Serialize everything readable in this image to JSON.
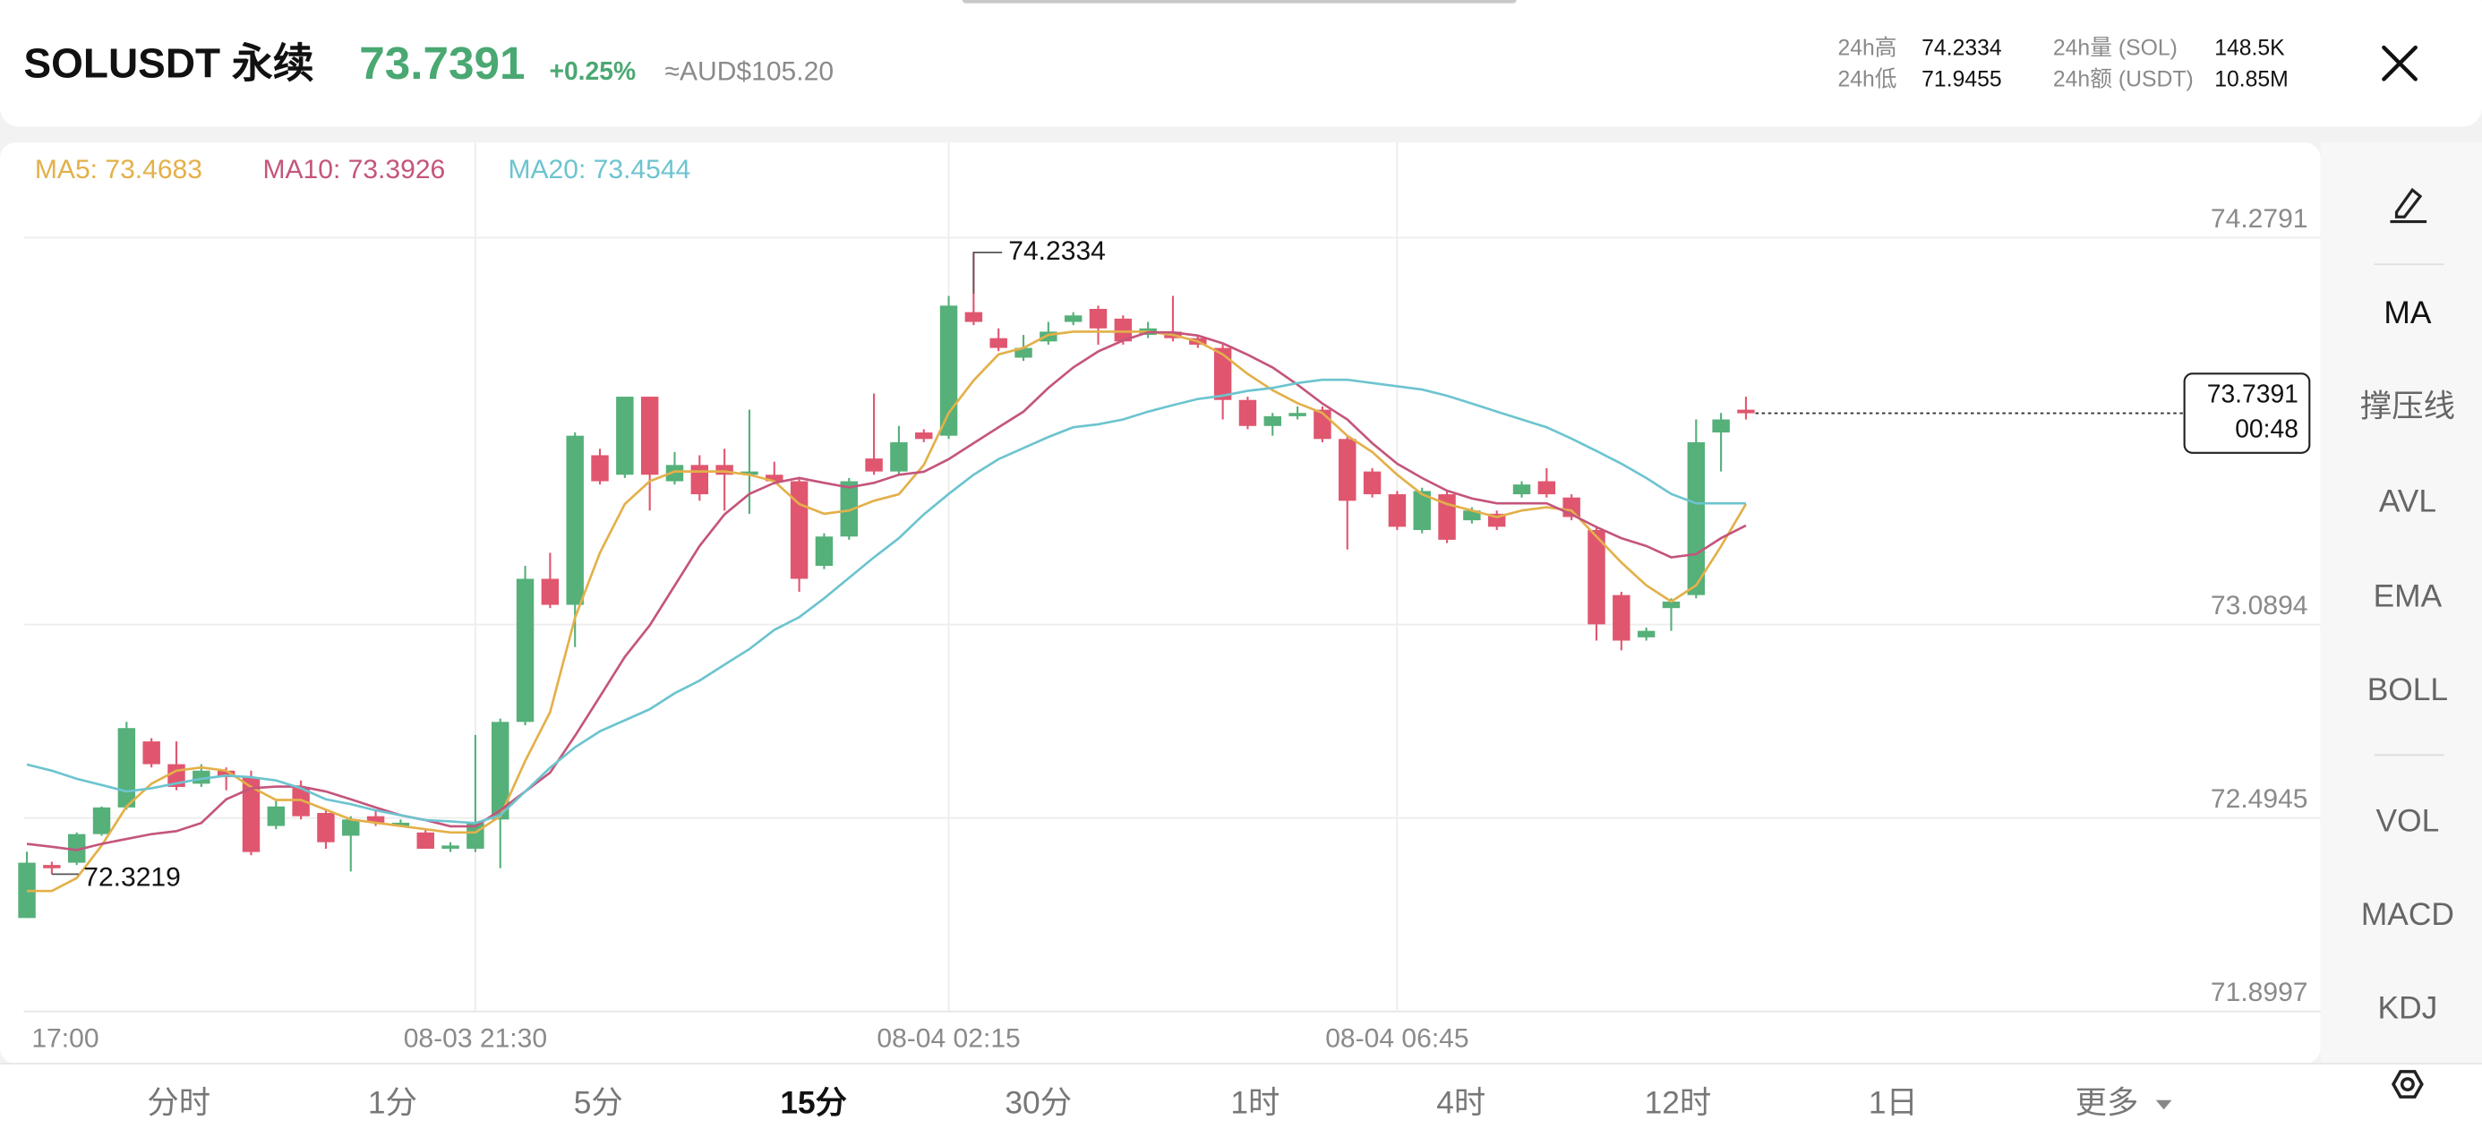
{
  "header": {
    "symbol": "SOLUSDT 永续",
    "price": "73.7391",
    "change": "+0.25%",
    "fiat": "≈AUD$105.20",
    "stats": [
      {
        "label": "24h高",
        "value": "74.2334"
      },
      {
        "label": "24h低",
        "value": "71.9455"
      },
      {
        "label": "24h量 (SOL)",
        "value": "148.5K"
      },
      {
        "label": "24h额 (USDT)",
        "value": "10.85M"
      }
    ]
  },
  "chart_data": {
    "type": "candlestick",
    "categories": [
      "17:00",
      null,
      null,
      null,
      null,
      null,
      null,
      null,
      null,
      null,
      null,
      null,
      null,
      null,
      null,
      null,
      null,
      null,
      "08-03 21:30",
      null,
      null,
      null,
      null,
      null,
      null,
      null,
      null,
      null,
      null,
      null,
      null,
      null,
      null,
      null,
      null,
      null,
      null,
      "08-04 02:15",
      null,
      null,
      null,
      null,
      null,
      null,
      null,
      null,
      null,
      null,
      null,
      null,
      null,
      null,
      null,
      null,
      null,
      "08-04 06:45",
      null,
      null,
      null,
      null,
      null,
      null,
      null,
      null,
      null,
      null,
      null,
      null,
      null,
      null
    ],
    "open": [
      72.187,
      72.35,
      72.357,
      72.445,
      72.527,
      72.73,
      72.66,
      72.6,
      72.64,
      72.62,
      72.47,
      72.59,
      72.51,
      72.44,
      72.5,
      72.47,
      72.45,
      72.4,
      72.4,
      72.49,
      72.79,
      73.23,
      73.15,
      73.61,
      73.55,
      73.79,
      73.53,
      73.58,
      73.58,
      73.55,
      73.55,
      73.53,
      73.27,
      73.36,
      73.6,
      73.56,
      73.68,
      73.67,
      74.05,
      73.97,
      73.91,
      73.96,
      74.02,
      74.06,
      74.03,
      73.98,
      73.99,
      73.97,
      73.94,
      73.78,
      73.7,
      73.73,
      73.75,
      73.66,
      73.56,
      73.49,
      73.38,
      73.49,
      73.41,
      73.43,
      73.49,
      73.53,
      73.48,
      73.38,
      73.18,
      73.05,
      73.14,
      73.18,
      73.68,
      73.75
    ],
    "high": [
      72.391,
      72.36,
      72.45,
      72.53,
      72.79,
      72.74,
      72.73,
      72.66,
      72.65,
      72.64,
      72.55,
      72.61,
      72.52,
      72.5,
      72.52,
      72.49,
      72.46,
      72.42,
      72.75,
      72.8,
      73.27,
      73.31,
      73.68,
      73.63,
      73.79,
      73.79,
      73.62,
      73.61,
      73.63,
      73.75,
      73.59,
      73.54,
      73.37,
      73.54,
      73.8,
      73.7,
      73.69,
      74.1,
      74.2334,
      74.0,
      73.98,
      74.02,
      74.05,
      74.07,
      74.04,
      74.02,
      74.1,
      73.98,
      73.95,
      73.79,
      73.74,
      73.76,
      73.76,
      73.67,
      73.57,
      73.5,
      73.51,
      73.5,
      73.45,
      73.44,
      73.53,
      73.57,
      73.49,
      73.39,
      73.19,
      73.08,
      73.17,
      73.72,
      73.74,
      73.79
    ],
    "low": [
      72.187,
      72.3219,
      72.35,
      72.44,
      72.52,
      72.65,
      72.58,
      72.59,
      72.58,
      72.38,
      72.46,
      72.49,
      72.4,
      72.33,
      72.47,
      72.47,
      72.4,
      72.39,
      72.39,
      72.34,
      72.78,
      73.14,
      73.02,
      73.52,
      73.54,
      73.44,
      73.52,
      73.47,
      73.44,
      73.43,
      73.52,
      73.19,
      73.26,
      73.35,
      73.55,
      73.55,
      73.65,
      73.66,
      74.01,
      73.93,
      73.9,
      73.95,
      74.01,
      73.95,
      73.95,
      73.97,
      73.96,
      73.94,
      73.72,
      73.69,
      73.67,
      73.72,
      73.65,
      73.32,
      73.48,
      73.38,
      73.37,
      73.34,
      73.4,
      73.38,
      73.48,
      73.48,
      73.41,
      73.04,
      73.01,
      73.04,
      73.07,
      73.17,
      73.56,
      73.72
    ],
    "close": [
      72.357,
      72.34,
      72.445,
      72.527,
      72.771,
      72.66,
      72.59,
      72.64,
      72.62,
      72.39,
      72.53,
      72.5,
      72.42,
      72.49,
      72.48,
      72.48,
      72.4,
      72.41,
      72.48,
      72.79,
      73.23,
      73.15,
      73.67,
      73.53,
      73.79,
      73.55,
      73.58,
      73.49,
      73.55,
      73.56,
      73.53,
      73.23,
      73.36,
      73.53,
      73.56,
      73.65,
      73.66,
      74.07,
      74.02,
      73.94,
      73.94,
      73.99,
      74.04,
      74.0,
      73.96,
      74.0,
      73.97,
      73.95,
      73.78,
      73.7,
      73.73,
      73.74,
      73.66,
      73.47,
      73.49,
      73.39,
      73.5,
      73.35,
      73.44,
      73.39,
      73.52,
      73.49,
      73.42,
      73.09,
      73.04,
      73.07,
      73.16,
      73.65,
      73.72,
      73.7391
    ],
    "up_color": "#55b07a",
    "down_color": "#e0566f",
    "series": [
      {
        "name": "MA5: 73.4683",
        "color": "#e3b049",
        "values": [
          72.27,
          72.27,
          72.31,
          72.41,
          72.53,
          72.6,
          72.64,
          72.65,
          72.64,
          72.59,
          72.55,
          72.55,
          72.52,
          72.49,
          72.48,
          72.47,
          72.46,
          72.45,
          72.45,
          72.5,
          72.67,
          72.82,
          73.11,
          73.31,
          73.46,
          73.53,
          73.56,
          73.56,
          73.56,
          73.55,
          73.53,
          73.46,
          73.43,
          73.44,
          73.47,
          73.49,
          73.58,
          73.74,
          73.84,
          73.92,
          73.94,
          73.98,
          73.99,
          73.99,
          73.99,
          73.99,
          73.98,
          73.96,
          73.92,
          73.86,
          73.81,
          73.77,
          73.74,
          73.67,
          73.62,
          73.55,
          73.49,
          73.46,
          73.44,
          73.42,
          73.44,
          73.45,
          73.44,
          73.36,
          73.28,
          73.21,
          73.16,
          73.21,
          73.33,
          73.46
        ]
      },
      {
        "name": "MA10: 73.3926",
        "color": "#c4557c",
        "values": [
          72.415,
          72.406,
          72.396,
          72.415,
          72.43,
          72.445,
          72.454,
          72.479,
          72.552,
          72.586,
          72.591,
          72.591,
          72.576,
          72.552,
          72.527,
          72.503,
          72.488,
          72.469,
          72.469,
          72.518,
          72.576,
          72.634,
          72.747,
          72.868,
          72.99,
          73.087,
          73.209,
          73.331,
          73.428,
          73.491,
          73.525,
          73.54,
          73.525,
          73.511,
          73.525,
          73.55,
          73.559,
          73.598,
          73.647,
          73.696,
          73.744,
          73.817,
          73.88,
          73.929,
          73.963,
          73.988,
          73.988,
          73.978,
          73.954,
          73.919,
          73.88,
          73.827,
          73.769,
          73.72,
          73.647,
          73.584,
          73.54,
          73.501,
          73.477,
          73.462,
          73.462,
          73.462,
          73.428,
          73.389,
          73.355,
          73.331,
          73.296,
          73.306,
          73.355,
          73.394
        ]
      },
      {
        "name": "MA20: 73.4544",
        "color": "#6cc4cf",
        "values": [
          72.659,
          72.64,
          72.615,
          72.596,
          72.576,
          72.586,
          72.601,
          72.615,
          72.625,
          72.62,
          72.61,
          72.586,
          72.552,
          72.537,
          72.518,
          72.503,
          72.488,
          72.484,
          72.479,
          72.503,
          72.576,
          72.649,
          72.712,
          72.761,
          72.795,
          72.829,
          72.878,
          72.917,
          72.966,
          73.014,
          73.073,
          73.112,
          73.17,
          73.233,
          73.296,
          73.355,
          73.428,
          73.491,
          73.55,
          73.598,
          73.632,
          73.666,
          73.696,
          73.705,
          73.72,
          73.744,
          73.764,
          73.783,
          73.793,
          73.808,
          73.817,
          73.832,
          73.842,
          73.842,
          73.832,
          73.822,
          73.812,
          73.793,
          73.769,
          73.744,
          73.72,
          73.696,
          73.661,
          73.623,
          73.584,
          73.54,
          73.491,
          73.462,
          73.462,
          73.462
        ]
      }
    ],
    "ylim": [
      71.8997,
      74.5717
    ],
    "yticks": [
      74.2791,
      73.0894,
      72.4945,
      71.8997
    ],
    "grid": true,
    "high_mark": 74.2334,
    "low_mark": 72.3219,
    "last_price": 73.7391,
    "countdown": "00:48"
  },
  "toolbar": [
    "MA",
    "撑压线",
    "AVL",
    "EMA",
    "BOLL",
    "VOL",
    "MACD",
    "KDJ"
  ],
  "tabs": [
    "分时",
    "1分",
    "5分",
    "15分",
    "30分",
    "1时",
    "4时",
    "12时",
    "1日",
    "更多"
  ],
  "active_tab": 3
}
